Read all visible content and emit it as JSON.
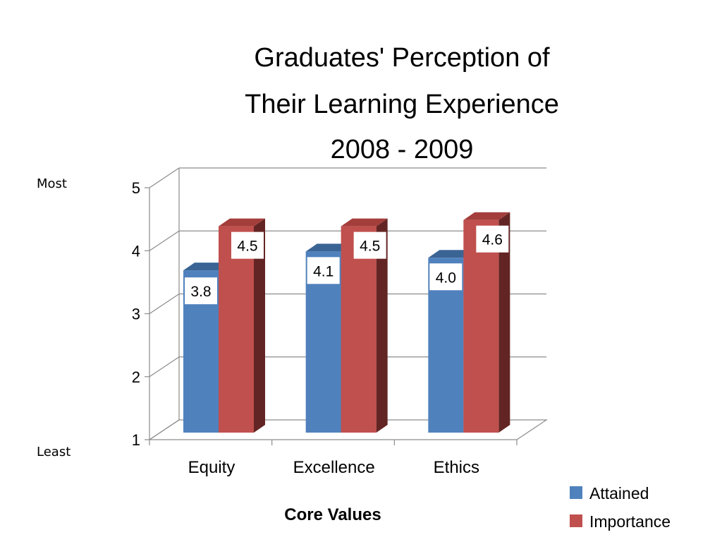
{
  "chart_data": {
    "type": "bar",
    "title_lines": [
      "Graduates' Perception of",
      "Their Learning Experience",
      "2008 - 2009"
    ],
    "categories": [
      "Equity",
      "Excellence",
      "Ethics"
    ],
    "series": [
      {
        "name": "Attained",
        "values": [
          3.8,
          4.1,
          4.0
        ],
        "labels": [
          "3.8",
          "4.1",
          "4.0"
        ]
      },
      {
        "name": "Importance",
        "values": [
          4.5,
          4.5,
          4.6
        ],
        "labels": [
          "4.5",
          "4.5",
          "4.6"
        ]
      }
    ],
    "xlabel": "Core Values",
    "ylim": [
      1,
      5
    ],
    "yticks": [
      "1",
      "2",
      "3",
      "4",
      "5"
    ],
    "y_top_label": "Most",
    "y_bottom_label": "Least",
    "grid": true,
    "style": "3d",
    "legend_position": "bottom-right",
    "colors": {
      "Attained": {
        "front": "#4f81bd",
        "top": "#3a6494",
        "side": "#2e4f78"
      },
      "Importance": {
        "front": "#c0504d",
        "top": "#a33e3b",
        "side": "#632523"
      }
    }
  }
}
